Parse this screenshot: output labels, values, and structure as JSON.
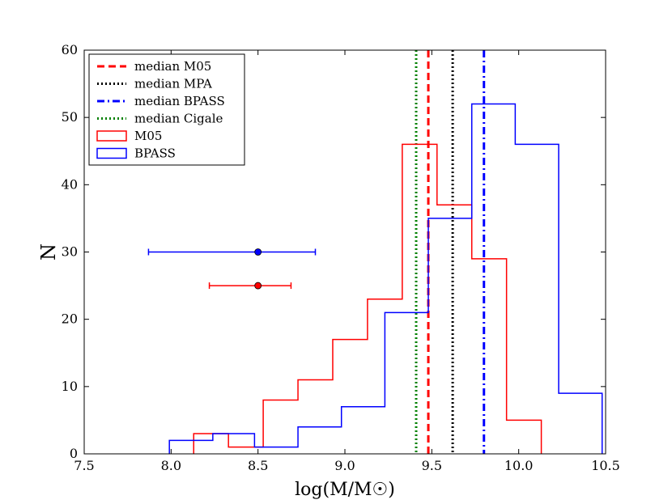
{
  "chart_data": {
    "type": "histogram",
    "xlabel": "log(M/M☉)",
    "ylabel": "N",
    "xlim": [
      7.5,
      10.5
    ],
    "ylim": [
      0,
      60
    ],
    "x_ticks": [
      "7.5",
      "8.0",
      "8.5",
      "9.0",
      "9.5",
      "10.0",
      "10.5"
    ],
    "y_ticks": [
      "0",
      "10",
      "20",
      "30",
      "40",
      "50",
      "60"
    ],
    "grid": false,
    "legend_position": "top-left",
    "series": [
      {
        "name": "M05",
        "style": "step",
        "color": "#ff0000",
        "bins": [
          {
            "x0": 8.13,
            "x1": 8.33,
            "count": 3
          },
          {
            "x0": 8.33,
            "x1": 8.53,
            "count": 1
          },
          {
            "x0": 8.53,
            "x1": 8.73,
            "count": 8
          },
          {
            "x0": 8.73,
            "x1": 8.93,
            "count": 11
          },
          {
            "x0": 8.93,
            "x1": 9.13,
            "count": 17
          },
          {
            "x0": 9.13,
            "x1": 9.33,
            "count": 23
          },
          {
            "x0": 9.33,
            "x1": 9.53,
            "count": 46
          },
          {
            "x0": 9.53,
            "x1": 9.73,
            "count": 37
          },
          {
            "x0": 9.73,
            "x1": 9.93,
            "count": 29
          },
          {
            "x0": 9.93,
            "x1": 10.13,
            "count": 5
          }
        ]
      },
      {
        "name": "BPASS",
        "style": "step",
        "color": "#0000ff",
        "bins": [
          {
            "x0": 7.99,
            "x1": 8.24,
            "count": 2
          },
          {
            "x0": 8.24,
            "x1": 8.48,
            "count": 3
          },
          {
            "x0": 8.48,
            "x1": 8.73,
            "count": 1
          },
          {
            "x0": 8.73,
            "x1": 8.98,
            "count": 4
          },
          {
            "x0": 8.98,
            "x1": 9.23,
            "count": 7
          },
          {
            "x0": 9.23,
            "x1": 9.48,
            "count": 21
          },
          {
            "x0": 9.48,
            "x1": 9.73,
            "count": 35
          },
          {
            "x0": 9.73,
            "x1": 9.98,
            "count": 52
          },
          {
            "x0": 9.98,
            "x1": 10.23,
            "count": 46
          },
          {
            "x0": 10.23,
            "x1": 10.48,
            "count": 9
          }
        ]
      }
    ],
    "medians": [
      {
        "name": "median M05",
        "x": 9.48,
        "color": "#ff0000",
        "dash": "dashed"
      },
      {
        "name": "median MPA",
        "x": 9.62,
        "color": "#000000",
        "dash": "dotted"
      },
      {
        "name": "median BPASS",
        "x": 9.8,
        "color": "#0000ff",
        "dash": "dashdot"
      },
      {
        "name": "median Cigale",
        "x": 9.41,
        "color": "#008000",
        "dash": "dotted"
      }
    ],
    "error_bars": [
      {
        "series": "BPASS",
        "x": 8.5,
        "y": 30,
        "xerr_low": 0.63,
        "xerr_high": 0.33,
        "color": "#0000ff"
      },
      {
        "series": "M05",
        "x": 8.5,
        "y": 25,
        "xerr_low": 0.28,
        "xerr_high": 0.19,
        "color": "#ff0000"
      }
    ],
    "legend": [
      {
        "label": "median M05",
        "kind": "line",
        "color": "#ff0000",
        "dash": "dashed"
      },
      {
        "label": "median MPA",
        "kind": "line",
        "color": "#000000",
        "dash": "dotted"
      },
      {
        "label": "median BPASS",
        "kind": "line",
        "color": "#0000ff",
        "dash": "dashdot"
      },
      {
        "label": "median Cigale",
        "kind": "line",
        "color": "#008000",
        "dash": "dotted"
      },
      {
        "label": "M05",
        "kind": "patch",
        "color": "#ff0000"
      },
      {
        "label": "BPASS",
        "kind": "patch",
        "color": "#0000ff"
      }
    ]
  }
}
